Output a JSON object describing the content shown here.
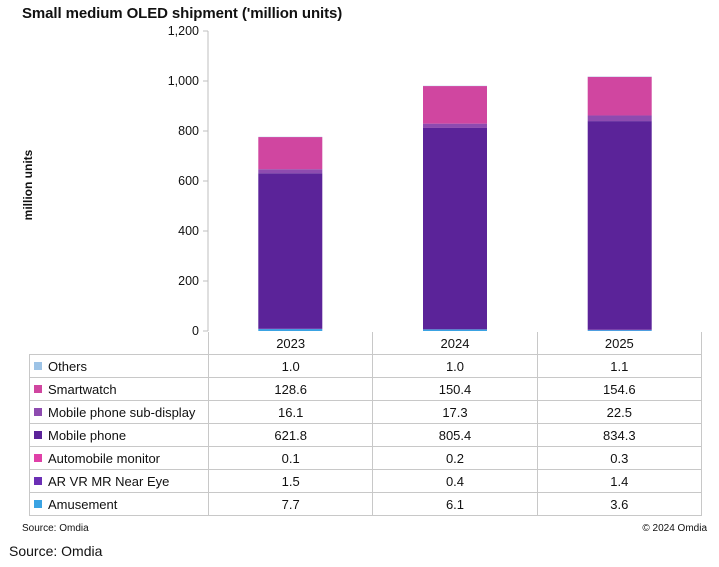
{
  "title": "Small medium OLED shipment ('million units)",
  "chart_data": {
    "type": "bar",
    "stacked": true,
    "title": "Small medium OLED shipment ('million units)",
    "ylabel": "million units",
    "xlabel": "",
    "categories": [
      "2023",
      "2024",
      "2025"
    ],
    "ylim": [
      0,
      1200
    ],
    "yticks": [
      "0",
      "200",
      "400",
      "600",
      "800",
      "1,000",
      "1,200"
    ],
    "ytick_values": [
      0,
      200,
      400,
      600,
      800,
      1000,
      1200
    ],
    "grid": false,
    "legend": "table-below",
    "series": [
      {
        "name": "Others",
        "values": [
          1.0,
          1.0,
          1.1
        ],
        "display": [
          "1.0",
          "1.0",
          "1.1"
        ],
        "color": "#9dc3e6"
      },
      {
        "name": "Smartwatch",
        "values": [
          128.6,
          150.4,
          154.6
        ],
        "display": [
          "128.6",
          "150.4",
          "154.6"
        ],
        "color": "#d046a0"
      },
      {
        "name": "Mobile phone sub-display",
        "values": [
          16.1,
          17.3,
          22.5
        ],
        "display": [
          "16.1",
          "17.3",
          "22.5"
        ],
        "color": "#8e4bb0"
      },
      {
        "name": "Mobile phone",
        "values": [
          621.8,
          805.4,
          834.3
        ],
        "display": [
          "621.8",
          "805.4",
          "834.3"
        ],
        "color": "#5b2399"
      },
      {
        "name": "Automobile monitor",
        "values": [
          0.1,
          0.2,
          0.3
        ],
        "display": [
          "0.1",
          "0.2",
          "0.3"
        ],
        "color": "#e040a8"
      },
      {
        "name": "AR VR MR Near Eye",
        "values": [
          1.5,
          0.4,
          1.4
        ],
        "display": [
          "1.5",
          "0.4",
          "1.4"
        ],
        "color": "#6b2fb5"
      },
      {
        "name": "Amusement",
        "values": [
          7.7,
          6.1,
          3.6
        ],
        "display": [
          "7.7",
          "6.1",
          "3.6"
        ],
        "color": "#3aa3e3"
      }
    ]
  },
  "footer": {
    "source_small": "Source: Omdia",
    "copyright": "© 2024 Omdia",
    "source_big": "Source: Omdia"
  }
}
